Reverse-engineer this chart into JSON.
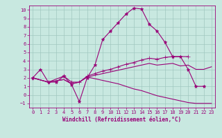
{
  "xlabel": "Windchill (Refroidissement éolien,°C)",
  "xlim": [
    -0.5,
    23.5
  ],
  "ylim": [
    -1.5,
    10.5
  ],
  "xticks": [
    0,
    1,
    2,
    3,
    4,
    5,
    6,
    7,
    8,
    9,
    10,
    11,
    12,
    13,
    14,
    15,
    16,
    17,
    18,
    19,
    20,
    21,
    22,
    23
  ],
  "yticks": [
    -1,
    0,
    1,
    2,
    3,
    4,
    5,
    6,
    7,
    8,
    9,
    10
  ],
  "bg_color": "#c8e8e0",
  "line_color": "#990077",
  "grid_color": "#a0c8c0",
  "curves": [
    {
      "x": [
        0,
        1,
        2,
        3,
        4,
        5,
        6,
        7,
        8,
        9,
        10,
        11,
        12,
        13,
        14,
        15,
        16,
        17,
        18,
        19,
        20,
        21,
        22
      ],
      "y": [
        2.0,
        3.0,
        1.5,
        1.5,
        2.2,
        1.2,
        -0.8,
        2.0,
        3.5,
        6.5,
        7.5,
        8.5,
        9.5,
        10.2,
        10.1,
        8.3,
        7.5,
        6.2,
        4.5,
        4.5,
        3.0,
        1.0,
        1.0
      ],
      "marker": "*",
      "markersize": 3.5
    },
    {
      "x": [
        0,
        2,
        4,
        5,
        6,
        7,
        8,
        9,
        10,
        11,
        12,
        13,
        14,
        15,
        16,
        17,
        18,
        20
      ],
      "y": [
        2.0,
        1.5,
        2.2,
        1.5,
        1.5,
        2.2,
        2.5,
        2.8,
        3.0,
        3.3,
        3.6,
        3.8,
        4.1,
        4.3,
        4.2,
        4.4,
        4.5,
        4.5
      ],
      "marker": "+",
      "markersize": 4
    },
    {
      "x": [
        0,
        2,
        4,
        5,
        6,
        7,
        8,
        9,
        10,
        11,
        12,
        13,
        14,
        15,
        16,
        17,
        18,
        19,
        20,
        21,
        22,
        23
      ],
      "y": [
        2.0,
        1.5,
        1.8,
        1.3,
        1.5,
        2.1,
        2.3,
        2.5,
        2.7,
        2.9,
        3.1,
        3.3,
        3.5,
        3.7,
        3.5,
        3.6,
        3.7,
        3.4,
        3.5,
        3.0,
        3.0,
        3.3
      ],
      "marker": null,
      "markersize": 0
    },
    {
      "x": [
        0,
        2,
        4,
        5,
        6,
        7,
        8,
        9,
        10,
        11,
        12,
        13,
        14,
        15,
        16,
        17,
        18,
        19,
        20,
        21,
        22,
        23
      ],
      "y": [
        2.0,
        1.5,
        1.8,
        1.3,
        1.5,
        2.1,
        1.9,
        1.7,
        1.5,
        1.3,
        1.0,
        0.7,
        0.5,
        0.2,
        -0.1,
        -0.3,
        -0.5,
        -0.7,
        -0.9,
        -1.0,
        -1.0,
        -1.0
      ],
      "marker": null,
      "markersize": 0
    }
  ]
}
